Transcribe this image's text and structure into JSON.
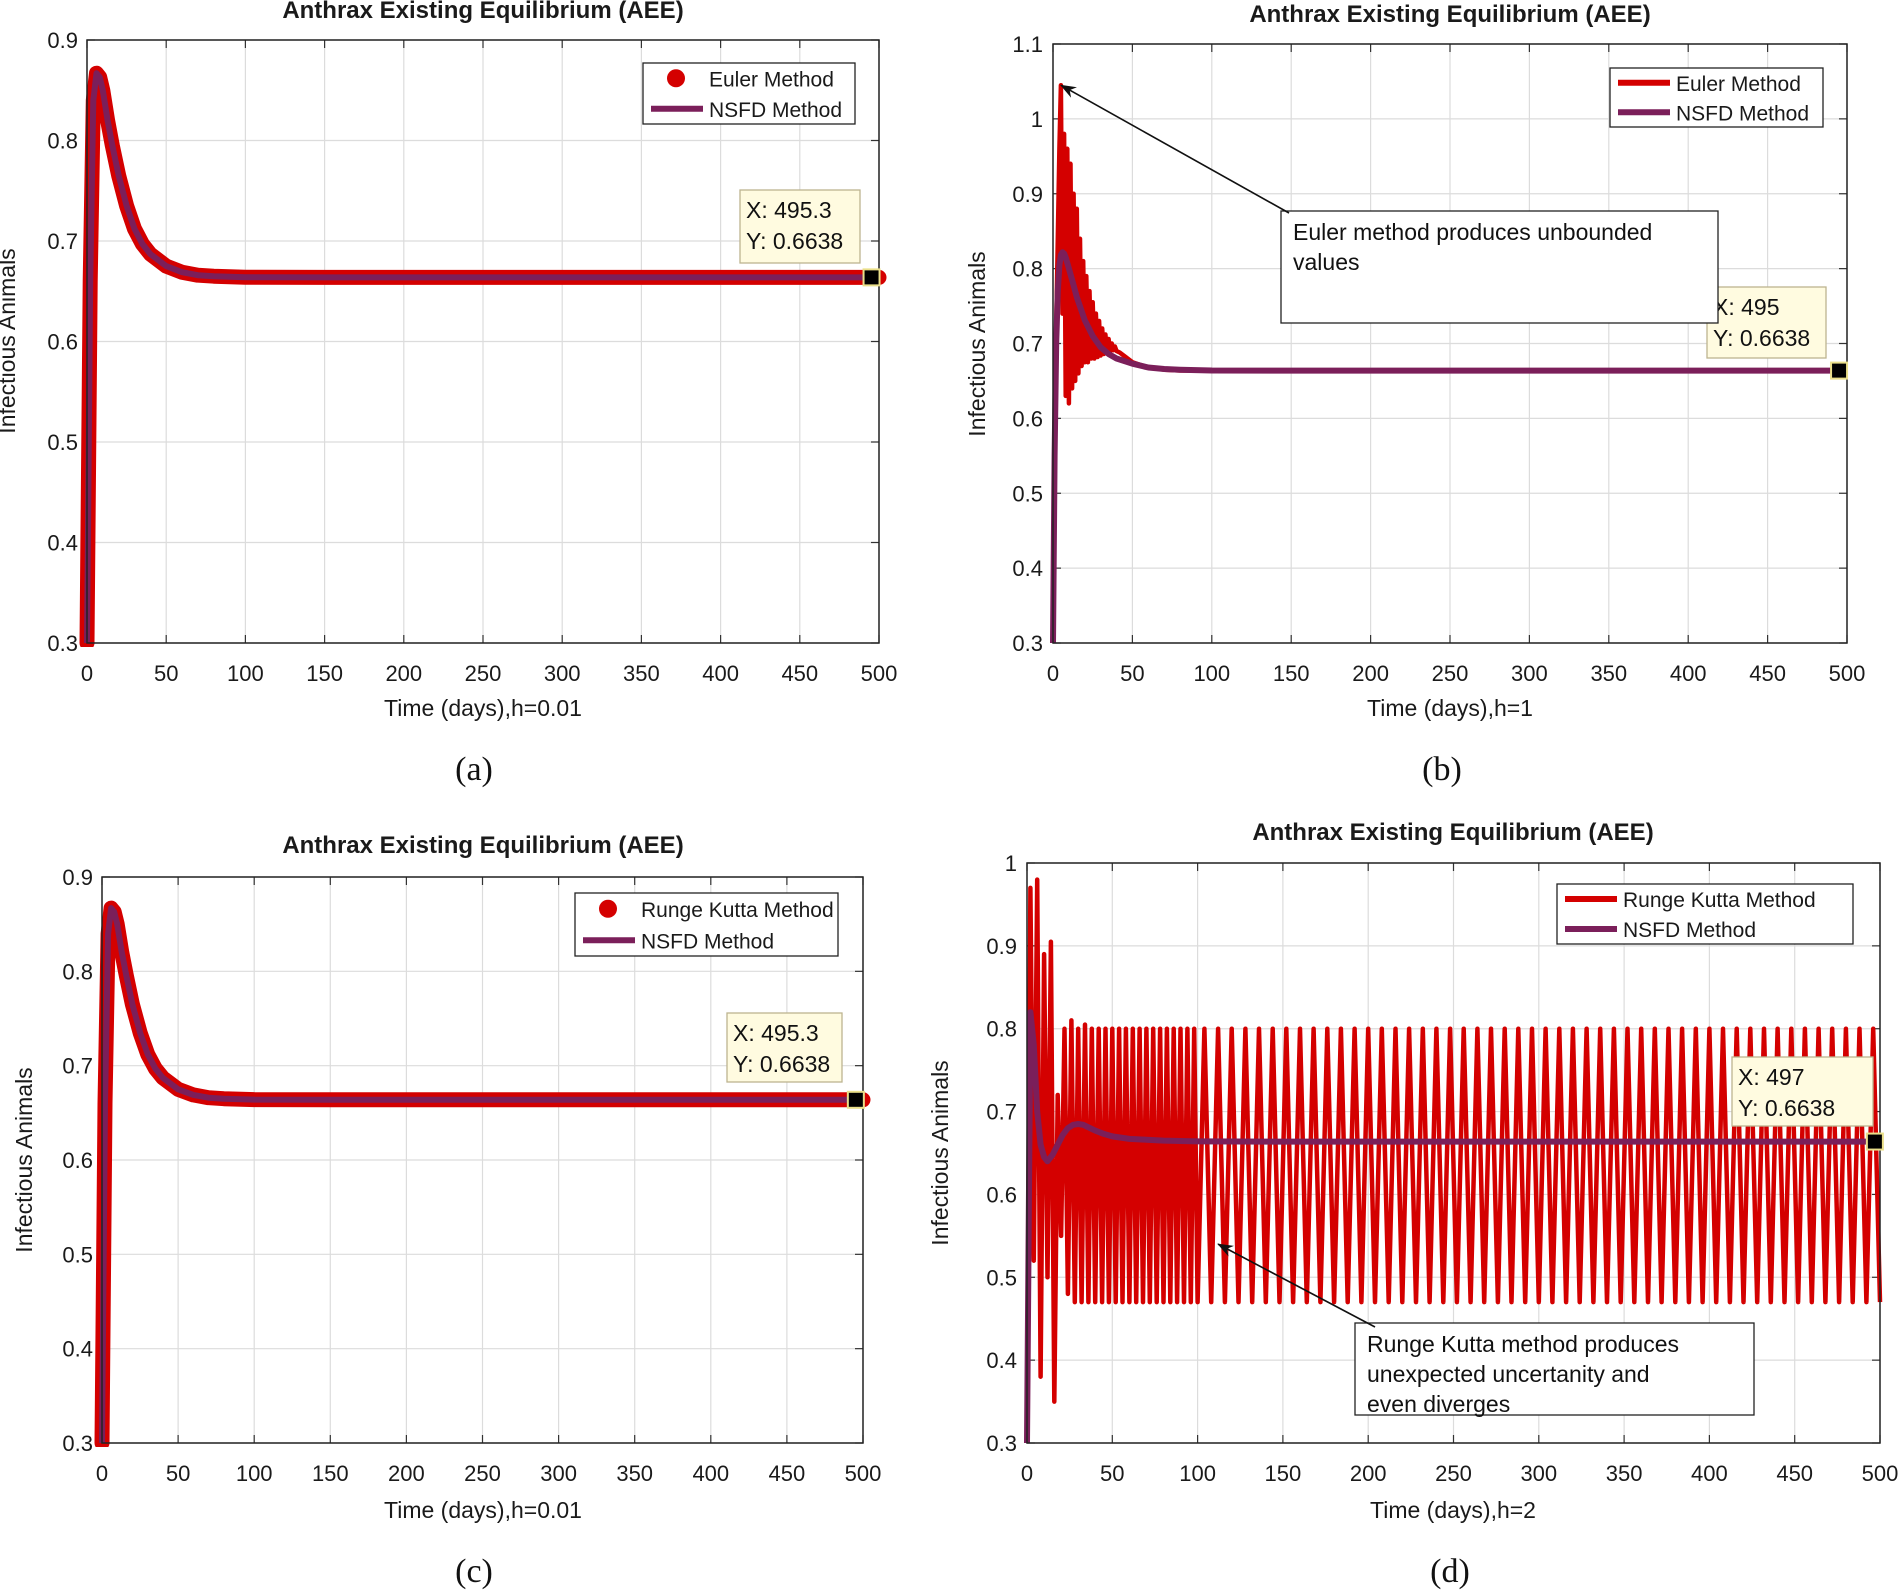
{
  "chart_data": [
    {
      "type": "line",
      "title": "Anthrax Existing Equilibrium (AEE)",
      "xlabel": "Time (days),h=0.01",
      "ylabel": "Infectious Animals",
      "caption": "(a)",
      "xlim": [
        0,
        500
      ],
      "ylim": [
        0.3,
        0.9
      ],
      "xticks": [
        0,
        50,
        100,
        150,
        200,
        250,
        300,
        350,
        400,
        450,
        500
      ],
      "yticks": [
        0.3,
        0.4,
        0.5,
        0.6,
        0.7,
        0.8,
        0.9
      ],
      "grid": true,
      "legend_position": "top-right",
      "series": [
        {
          "name": "Euler Method",
          "style": "marker",
          "color": "#d40000",
          "x": [
            0,
            2,
            4,
            6,
            8,
            10,
            13,
            16,
            20,
            25,
            30,
            35,
            40,
            50,
            60,
            70,
            80,
            100,
            150,
            200,
            300,
            400,
            500
          ],
          "y": [
            0.3,
            0.66,
            0.84,
            0.867,
            0.863,
            0.85,
            0.82,
            0.795,
            0.765,
            0.735,
            0.712,
            0.697,
            0.687,
            0.675,
            0.669,
            0.666,
            0.665,
            0.664,
            0.6638,
            0.6638,
            0.6638,
            0.6638,
            0.6638
          ]
        },
        {
          "name": "NSFD Method",
          "style": "line",
          "color": "#7b1f5a",
          "x": [
            0,
            2,
            4,
            6,
            8,
            10,
            13,
            16,
            20,
            25,
            30,
            35,
            40,
            50,
            60,
            70,
            80,
            100,
            150,
            200,
            300,
            400,
            500
          ],
          "y": [
            0.3,
            0.66,
            0.84,
            0.867,
            0.863,
            0.85,
            0.82,
            0.795,
            0.765,
            0.735,
            0.712,
            0.697,
            0.687,
            0.675,
            0.669,
            0.666,
            0.665,
            0.664,
            0.6638,
            0.6638,
            0.6638,
            0.6638,
            0.6638
          ]
        }
      ],
      "datatip": {
        "x": 495.3,
        "y": 0.6638,
        "line1": "X: 495.3",
        "line2": "Y: 0.6638"
      },
      "annotation": null
    },
    {
      "type": "line",
      "title": "Anthrax Existing Equilibrium (AEE)",
      "xlabel": "Time (days),h=1",
      "ylabel": "Infectious Animals",
      "caption": "(b)",
      "xlim": [
        0,
        500
      ],
      "ylim": [
        0.3,
        1.1
      ],
      "xticks": [
        0,
        50,
        100,
        150,
        200,
        250,
        300,
        350,
        400,
        450,
        500
      ],
      "yticks": [
        0.3,
        0.4,
        0.5,
        0.6,
        0.7,
        0.8,
        0.9,
        1,
        1.1
      ],
      "grid": true,
      "legend_position": "top-right",
      "series": [
        {
          "name": "Euler Method",
          "style": "line",
          "color": "#d40000",
          "x": [
            0,
            2,
            4,
            5,
            6,
            7,
            8,
            9,
            10,
            11,
            12,
            13,
            14,
            15,
            16,
            17,
            18,
            19,
            20,
            21,
            22,
            23,
            24,
            25,
            26,
            27,
            28,
            29,
            30,
            31,
            32,
            33,
            34,
            35,
            36,
            37,
            38,
            39,
            40,
            42,
            45,
            50,
            60,
            70,
            80,
            100,
            200,
            300,
            400,
            500
          ],
          "y": [
            0.3,
            0.72,
            0.96,
            1.045,
            0.74,
            0.98,
            0.63,
            0.96,
            0.62,
            0.94,
            0.64,
            0.9,
            0.65,
            0.88,
            0.66,
            0.84,
            0.67,
            0.81,
            0.675,
            0.79,
            0.675,
            0.77,
            0.68,
            0.755,
            0.68,
            0.74,
            0.682,
            0.73,
            0.684,
            0.72,
            0.686,
            0.712,
            0.688,
            0.706,
            0.69,
            0.7,
            0.691,
            0.696,
            0.69,
            0.688,
            0.683,
            0.675,
            0.668,
            0.665,
            0.664,
            0.6638,
            0.6638,
            0.6638,
            0.6638,
            0.6638
          ]
        },
        {
          "name": "NSFD Method",
          "style": "line",
          "color": "#7b1f5a",
          "x": [
            0,
            1,
            2,
            3,
            4,
            5,
            6,
            7,
            8,
            10,
            12,
            15,
            20,
            25,
            30,
            35,
            40,
            50,
            60,
            70,
            80,
            100,
            150,
            200,
            300,
            400,
            500
          ],
          "y": [
            0.3,
            0.55,
            0.7,
            0.77,
            0.805,
            0.818,
            0.822,
            0.82,
            0.815,
            0.8,
            0.785,
            0.762,
            0.731,
            0.71,
            0.695,
            0.686,
            0.68,
            0.673,
            0.668,
            0.666,
            0.665,
            0.664,
            0.6638,
            0.6638,
            0.6638,
            0.6638,
            0.6638
          ]
        }
      ],
      "datatip": {
        "x": 495,
        "y": 0.6638,
        "line1": "X: 495",
        "line2": "Y: 0.6638"
      },
      "annotation": {
        "lines": [
          "Euler method produces unbounded",
          "values"
        ],
        "arrow_to": {
          "x": 5,
          "y": 1.045
        }
      }
    },
    {
      "type": "line",
      "title": "Anthrax Existing Equilibrium (AEE)",
      "xlabel": "Time (days),h=0.01",
      "ylabel": "Infectious Animals",
      "caption": "(c)",
      "xlim": [
        0,
        500
      ],
      "ylim": [
        0.3,
        0.9
      ],
      "xticks": [
        0,
        50,
        100,
        150,
        200,
        250,
        300,
        350,
        400,
        450,
        500
      ],
      "yticks": [
        0.3,
        0.4,
        0.5,
        0.6,
        0.7,
        0.8,
        0.9
      ],
      "grid": true,
      "legend_position": "top-right",
      "series": [
        {
          "name": "Runge Kutta Method",
          "style": "marker",
          "color": "#d40000",
          "x": [
            0,
            2,
            4,
            6,
            8,
            10,
            13,
            16,
            20,
            25,
            30,
            35,
            40,
            50,
            60,
            70,
            80,
            100,
            150,
            200,
            300,
            400,
            500
          ],
          "y": [
            0.3,
            0.66,
            0.84,
            0.867,
            0.863,
            0.85,
            0.82,
            0.795,
            0.765,
            0.735,
            0.712,
            0.697,
            0.687,
            0.675,
            0.669,
            0.666,
            0.665,
            0.664,
            0.6638,
            0.6638,
            0.6638,
            0.6638,
            0.6638
          ]
        },
        {
          "name": "NSFD Method",
          "style": "line",
          "color": "#7b1f5a",
          "x": [
            0,
            2,
            4,
            6,
            8,
            10,
            13,
            16,
            20,
            25,
            30,
            35,
            40,
            50,
            60,
            70,
            80,
            100,
            150,
            200,
            300,
            400,
            500
          ],
          "y": [
            0.3,
            0.66,
            0.84,
            0.867,
            0.863,
            0.85,
            0.82,
            0.795,
            0.765,
            0.735,
            0.712,
            0.697,
            0.687,
            0.675,
            0.669,
            0.666,
            0.665,
            0.664,
            0.6638,
            0.6638,
            0.6638,
            0.6638,
            0.6638
          ]
        }
      ],
      "datatip": {
        "x": 495.3,
        "y": 0.6638,
        "line1": "X: 495.3",
        "line2": "Y: 0.6638"
      },
      "annotation": null
    },
    {
      "type": "line",
      "title": "Anthrax Existing Equilibrium (AEE)",
      "xlabel": "Time (days),h=2",
      "ylabel": "Infectious Animals",
      "caption": "(d)",
      "xlim": [
        0,
        500
      ],
      "ylim": [
        0.3,
        1
      ],
      "xticks": [
        0,
        50,
        100,
        150,
        200,
        250,
        300,
        350,
        400,
        450,
        500
      ],
      "yticks": [
        0.3,
        0.4,
        0.5,
        0.6,
        0.7,
        0.8,
        0.9,
        1
      ],
      "grid": true,
      "legend_position": "top-right",
      "series": [
        {
          "name": "Runge Kutta Method",
          "style": "line",
          "color": "#d40000",
          "x": [
            0,
            2,
            4,
            6,
            8,
            10,
            12,
            14,
            16,
            18,
            20,
            22,
            24,
            26,
            28,
            30,
            32,
            34,
            36,
            38,
            40,
            42,
            44,
            46,
            48,
            50,
            52,
            54,
            56,
            58,
            60,
            62,
            64,
            66,
            68,
            70,
            72,
            74,
            76,
            78,
            80,
            82,
            84,
            86,
            88,
            90,
            92,
            94,
            96,
            98,
            100,
            104,
            108,
            112,
            116,
            120,
            124,
            128,
            132,
            136,
            140,
            144,
            148,
            152,
            156,
            160,
            164,
            168,
            172,
            176,
            180,
            184,
            188,
            192,
            196,
            200,
            204,
            208,
            212,
            216,
            220,
            224,
            228,
            232,
            236,
            240,
            244,
            248,
            252,
            256,
            260,
            264,
            268,
            272,
            276,
            280,
            284,
            288,
            292,
            296,
            300,
            304,
            308,
            312,
            316,
            320,
            324,
            328,
            332,
            336,
            340,
            344,
            348,
            352,
            356,
            360,
            364,
            368,
            372,
            376,
            380,
            384,
            388,
            392,
            396,
            400,
            404,
            408,
            412,
            416,
            420,
            424,
            428,
            432,
            436,
            440,
            444,
            448,
            452,
            456,
            460,
            464,
            468,
            472,
            476,
            480,
            484,
            488,
            492,
            496,
            500
          ],
          "y": [
            0.3,
            0.97,
            0.52,
            0.98,
            0.38,
            0.89,
            0.5,
            0.905,
            0.35,
            0.72,
            0.55,
            0.8,
            0.48,
            0.81,
            0.47,
            0.8,
            0.47,
            0.805,
            0.47,
            0.8,
            0.47,
            0.8,
            0.47,
            0.8,
            0.47,
            0.8,
            0.47,
            0.8,
            0.47,
            0.8,
            0.47,
            0.8,
            0.47,
            0.8,
            0.47,
            0.8,
            0.47,
            0.8,
            0.47,
            0.8,
            0.47,
            0.8,
            0.47,
            0.8,
            0.47,
            0.8,
            0.47,
            0.8,
            0.47,
            0.8,
            0.47,
            0.8,
            0.47,
            0.8,
            0.47,
            0.8,
            0.47,
            0.8,
            0.47,
            0.8,
            0.47,
            0.8,
            0.47,
            0.8,
            0.47,
            0.8,
            0.47,
            0.8,
            0.47,
            0.8,
            0.47,
            0.8,
            0.47,
            0.8,
            0.47,
            0.8,
            0.47,
            0.8,
            0.47,
            0.8,
            0.47,
            0.8,
            0.47,
            0.8,
            0.47,
            0.8,
            0.47,
            0.8,
            0.47,
            0.8,
            0.47,
            0.8,
            0.47,
            0.8,
            0.47,
            0.8,
            0.47,
            0.8,
            0.47,
            0.8,
            0.47,
            0.8,
            0.47,
            0.8,
            0.47,
            0.8,
            0.47,
            0.8,
            0.47,
            0.8,
            0.47,
            0.8,
            0.47,
            0.8,
            0.47,
            0.8,
            0.47,
            0.8,
            0.47,
            0.8,
            0.47,
            0.8,
            0.47,
            0.8,
            0.47,
            0.8,
            0.47,
            0.8,
            0.47,
            0.8,
            0.47,
            0.8,
            0.47,
            0.8,
            0.47,
            0.8,
            0.47,
            0.8,
            0.47,
            0.8,
            0.47,
            0.8,
            0.47,
            0.8,
            0.47,
            0.8,
            0.47,
            0.8,
            0.47,
            0.8,
            0.47
          ]
        },
        {
          "name": "NSFD Method",
          "style": "line",
          "color": "#7b1f5a",
          "x": [
            0,
            2,
            4,
            6,
            8,
            10,
            12,
            15,
            18,
            21,
            24,
            27,
            30,
            33,
            36,
            40,
            45,
            50,
            60,
            70,
            80,
            90,
            100,
            150,
            200,
            300,
            400,
            500
          ],
          "y": [
            0.3,
            0.82,
            0.78,
            0.7,
            0.66,
            0.645,
            0.64,
            0.648,
            0.66,
            0.672,
            0.68,
            0.684,
            0.685,
            0.684,
            0.681,
            0.677,
            0.673,
            0.67,
            0.667,
            0.666,
            0.665,
            0.6645,
            0.664,
            0.6638,
            0.6638,
            0.6638,
            0.6638,
            0.6638
          ]
        }
      ],
      "datatip": {
        "x": 497,
        "y": 0.6638,
        "line1": "X: 497",
        "line2": "Y: 0.6638"
      },
      "annotation": {
        "lines": [
          "Runge Kutta method produces",
          "unexpected uncertanity and",
          "even diverges"
        ],
        "arrow_to": {
          "x": 112,
          "y": 0.54
        }
      }
    }
  ]
}
